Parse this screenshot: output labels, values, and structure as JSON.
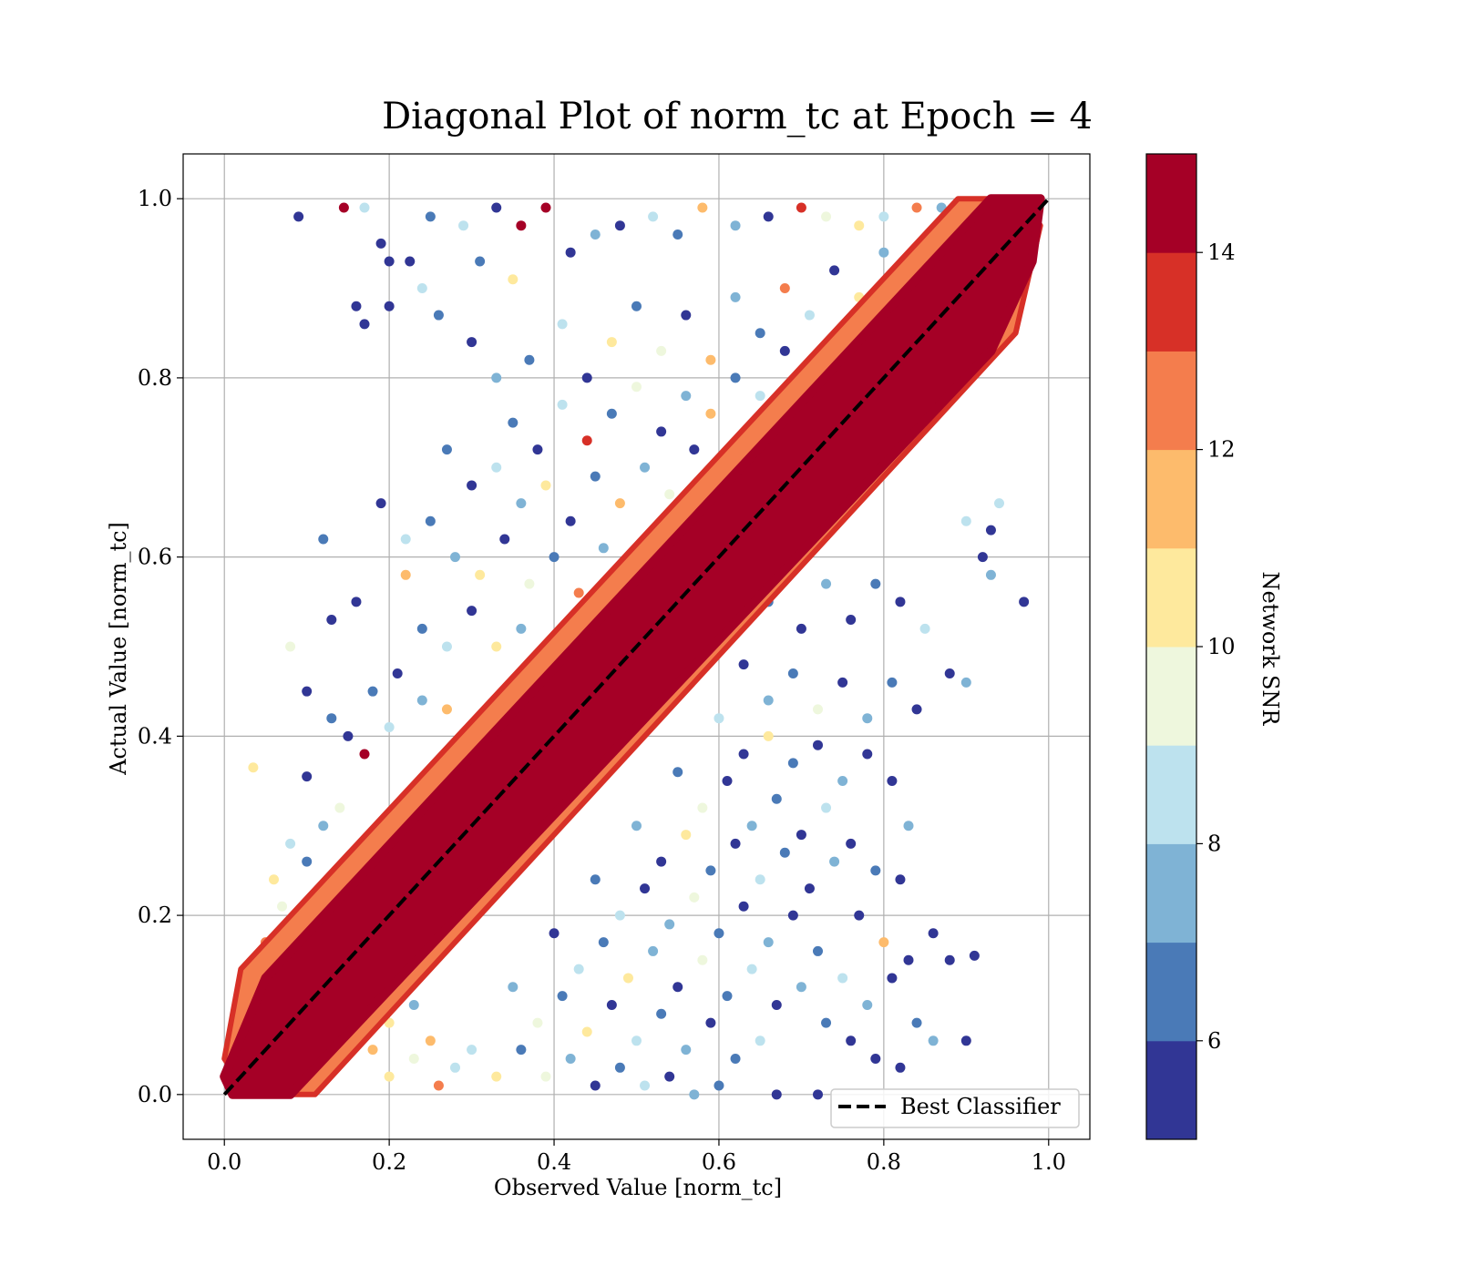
{
  "chart_data": {
    "type": "scatter",
    "title": "Diagonal Plot of norm_tc at Epoch = 4",
    "xlabel": "Observed Value [norm_tc]",
    "ylabel": "Actual Value [norm_tc]",
    "xlim": [
      -0.05,
      1.05
    ],
    "ylim": [
      -0.05,
      1.05
    ],
    "xticks": [
      0.0,
      0.2,
      0.4,
      0.6,
      0.8,
      1.0
    ],
    "xtick_labels": [
      "0.0",
      "0.2",
      "0.4",
      "0.6",
      "0.8",
      "1.0"
    ],
    "yticks": [
      0.0,
      0.2,
      0.4,
      0.6,
      0.8,
      1.0
    ],
    "ytick_labels": [
      "0.0",
      "0.2",
      "0.4",
      "0.6",
      "0.8",
      "1.0"
    ],
    "grid": true,
    "legend": {
      "position": "lower right",
      "entries": [
        "Best Classifier"
      ]
    },
    "reference_line": {
      "name": "Best Classifier",
      "style": "dashed",
      "color": "#000000",
      "x": [
        0.0,
        1.0
      ],
      "y": [
        0.0,
        1.0
      ]
    },
    "colorbar": {
      "label": "Network SNR",
      "range": [
        5,
        15
      ],
      "ticks": [
        6,
        8,
        10,
        12,
        14
      ],
      "tick_labels": [
        "6",
        "8",
        "10",
        "12",
        "14"
      ],
      "bins": [
        {
          "from": 5,
          "to": 6,
          "color": "#313695"
        },
        {
          "from": 6,
          "to": 7,
          "color": "#4a7ab7"
        },
        {
          "from": 7,
          "to": 8,
          "color": "#7fb3d5"
        },
        {
          "from": 8,
          "to": 9,
          "color": "#bde2ee"
        },
        {
          "from": 9,
          "to": 10,
          "color": "#eef7dd"
        },
        {
          "from": 10,
          "to": 11,
          "color": "#fee99d"
        },
        {
          "from": 11,
          "to": 12,
          "color": "#fdbb6c"
        },
        {
          "from": 12,
          "to": 13,
          "color": "#f47d4d"
        },
        {
          "from": 13,
          "to": 14,
          "color": "#d73027"
        },
        {
          "from": 14,
          "to": 15,
          "color": "#a50026"
        }
      ]
    },
    "band": {
      "description_color": "#a50026",
      "polygon": [
        [
          0.01,
          0.0
        ],
        [
          0.08,
          0.0
        ],
        [
          0.93,
          0.83
        ],
        [
          0.98,
          0.93
        ],
        [
          0.99,
          1.0
        ],
        [
          0.93,
          1.0
        ],
        [
          0.05,
          0.13
        ],
        [
          0.0,
          0.02
        ]
      ]
    },
    "edge_band": {
      "color": "#f47d4d",
      "polygon": [
        [
          0.03,
          0.0
        ],
        [
          0.11,
          0.0
        ],
        [
          0.96,
          0.85
        ],
        [
          0.99,
          0.97
        ],
        [
          0.97,
          1.0
        ],
        [
          0.89,
          1.0
        ],
        [
          0.02,
          0.14
        ],
        [
          0.0,
          0.04
        ]
      ]
    },
    "points": [
      [
        0.09,
        0.98,
        5
      ],
      [
        0.145,
        0.99,
        14
      ],
      [
        0.17,
        0.99,
        8
      ],
      [
        0.19,
        0.95,
        5
      ],
      [
        0.2,
        0.93,
        5
      ],
      [
        0.2,
        0.88,
        5
      ],
      [
        0.16,
        0.88,
        5
      ],
      [
        0.17,
        0.86,
        5
      ],
      [
        0.225,
        0.93,
        5
      ],
      [
        0.24,
        0.9,
        8
      ],
      [
        0.26,
        0.87,
        6
      ],
      [
        0.25,
        0.98,
        6
      ],
      [
        0.29,
        0.97,
        8
      ],
      [
        0.33,
        0.99,
        5
      ],
      [
        0.36,
        0.97,
        14
      ],
      [
        0.39,
        0.99,
        14
      ],
      [
        0.31,
        0.93,
        6
      ],
      [
        0.35,
        0.91,
        10
      ],
      [
        0.42,
        0.94,
        5
      ],
      [
        0.45,
        0.96,
        7
      ],
      [
        0.48,
        0.97,
        5
      ],
      [
        0.52,
        0.98,
        8
      ],
      [
        0.55,
        0.96,
        6
      ],
      [
        0.58,
        0.99,
        11
      ],
      [
        0.62,
        0.97,
        7
      ],
      [
        0.66,
        0.98,
        5
      ],
      [
        0.7,
        0.99,
        13
      ],
      [
        0.73,
        0.98,
        9
      ],
      [
        0.77,
        0.97,
        10
      ],
      [
        0.8,
        0.98,
        8
      ],
      [
        0.84,
        0.99,
        12
      ],
      [
        0.87,
        0.99,
        7
      ],
      [
        0.9,
        0.995,
        14
      ],
      [
        0.3,
        0.84,
        5
      ],
      [
        0.33,
        0.8,
        7
      ],
      [
        0.37,
        0.82,
        6
      ],
      [
        0.41,
        0.86,
        8
      ],
      [
        0.44,
        0.8,
        5
      ],
      [
        0.47,
        0.84,
        10
      ],
      [
        0.5,
        0.88,
        6
      ],
      [
        0.53,
        0.83,
        9
      ],
      [
        0.56,
        0.87,
        5
      ],
      [
        0.59,
        0.82,
        11
      ],
      [
        0.62,
        0.89,
        7
      ],
      [
        0.65,
        0.85,
        6
      ],
      [
        0.68,
        0.9,
        12
      ],
      [
        0.71,
        0.87,
        8
      ],
      [
        0.74,
        0.92,
        5
      ],
      [
        0.77,
        0.89,
        10
      ],
      [
        0.8,
        0.94,
        7
      ],
      [
        0.35,
        0.75,
        6
      ],
      [
        0.38,
        0.72,
        5
      ],
      [
        0.41,
        0.77,
        8
      ],
      [
        0.44,
        0.73,
        13
      ],
      [
        0.47,
        0.76,
        6
      ],
      [
        0.5,
        0.79,
        9
      ],
      [
        0.53,
        0.74,
        5
      ],
      [
        0.56,
        0.78,
        7
      ],
      [
        0.59,
        0.76,
        11
      ],
      [
        0.62,
        0.8,
        6
      ],
      [
        0.65,
        0.78,
        8
      ],
      [
        0.68,
        0.83,
        5
      ],
      [
        0.71,
        0.8,
        10
      ],
      [
        0.27,
        0.72,
        6
      ],
      [
        0.3,
        0.68,
        5
      ],
      [
        0.33,
        0.7,
        8
      ],
      [
        0.36,
        0.66,
        7
      ],
      [
        0.39,
        0.68,
        10
      ],
      [
        0.42,
        0.64,
        5
      ],
      [
        0.45,
        0.69,
        6
      ],
      [
        0.48,
        0.66,
        11
      ],
      [
        0.51,
        0.7,
        7
      ],
      [
        0.54,
        0.67,
        9
      ],
      [
        0.57,
        0.72,
        5
      ],
      [
        0.19,
        0.66,
        5
      ],
      [
        0.22,
        0.62,
        8
      ],
      [
        0.25,
        0.64,
        6
      ],
      [
        0.28,
        0.6,
        7
      ],
      [
        0.31,
        0.58,
        10
      ],
      [
        0.34,
        0.62,
        5
      ],
      [
        0.37,
        0.57,
        9
      ],
      [
        0.4,
        0.6,
        6
      ],
      [
        0.43,
        0.56,
        12
      ],
      [
        0.46,
        0.61,
        7
      ],
      [
        0.12,
        0.62,
        6
      ],
      [
        0.16,
        0.55,
        5
      ],
      [
        0.13,
        0.53,
        5
      ],
      [
        0.22,
        0.58,
        11
      ],
      [
        0.24,
        0.52,
        6
      ],
      [
        0.27,
        0.5,
        8
      ],
      [
        0.3,
        0.54,
        5
      ],
      [
        0.33,
        0.5,
        10
      ],
      [
        0.36,
        0.52,
        7
      ],
      [
        0.39,
        0.48,
        9
      ],
      [
        0.08,
        0.5,
        9
      ],
      [
        0.18,
        0.45,
        6
      ],
      [
        0.21,
        0.47,
        5
      ],
      [
        0.24,
        0.44,
        7
      ],
      [
        0.27,
        0.43,
        11
      ],
      [
        0.1,
        0.45,
        5
      ],
      [
        0.13,
        0.42,
        6
      ],
      [
        0.15,
        0.4,
        5
      ],
      [
        0.17,
        0.38,
        14
      ],
      [
        0.2,
        0.41,
        8
      ],
      [
        0.035,
        0.365,
        10
      ],
      [
        0.1,
        0.355,
        5
      ],
      [
        0.12,
        0.3,
        7
      ],
      [
        0.14,
        0.32,
        9
      ],
      [
        0.08,
        0.28,
        8
      ],
      [
        0.1,
        0.26,
        6
      ],
      [
        0.06,
        0.24,
        10
      ],
      [
        0.07,
        0.21,
        9
      ],
      [
        0.05,
        0.17,
        12
      ],
      [
        0.66,
        0.55,
        6
      ],
      [
        0.7,
        0.52,
        5
      ],
      [
        0.73,
        0.57,
        7
      ],
      [
        0.76,
        0.53,
        5
      ],
      [
        0.79,
        0.57,
        6
      ],
      [
        0.82,
        0.55,
        5
      ],
      [
        0.85,
        0.52,
        8
      ],
      [
        0.88,
        0.47,
        5
      ],
      [
        0.84,
        0.43,
        5
      ],
      [
        0.9,
        0.46,
        7
      ],
      [
        0.92,
        0.6,
        5
      ],
      [
        0.9,
        0.64,
        8
      ],
      [
        0.93,
        0.63,
        5
      ],
      [
        0.94,
        0.66,
        8
      ],
      [
        0.63,
        0.48,
        5
      ],
      [
        0.66,
        0.44,
        7
      ],
      [
        0.69,
        0.47,
        6
      ],
      [
        0.72,
        0.43,
        9
      ],
      [
        0.75,
        0.46,
        5
      ],
      [
        0.78,
        0.42,
        7
      ],
      [
        0.81,
        0.46,
        6
      ],
      [
        0.6,
        0.42,
        8
      ],
      [
        0.63,
        0.38,
        5
      ],
      [
        0.66,
        0.4,
        10
      ],
      [
        0.69,
        0.37,
        6
      ],
      [
        0.72,
        0.39,
        5
      ],
      [
        0.75,
        0.35,
        7
      ],
      [
        0.78,
        0.38,
        5
      ],
      [
        0.81,
        0.35,
        5
      ],
      [
        0.83,
        0.3,
        7
      ],
      [
        0.55,
        0.36,
        6
      ],
      [
        0.58,
        0.32,
        9
      ],
      [
        0.61,
        0.35,
        5
      ],
      [
        0.64,
        0.3,
        7
      ],
      [
        0.67,
        0.33,
        6
      ],
      [
        0.7,
        0.29,
        5
      ],
      [
        0.73,
        0.32,
        8
      ],
      [
        0.76,
        0.28,
        5
      ],
      [
        0.79,
        0.25,
        6
      ],
      [
        0.82,
        0.24,
        5
      ],
      [
        0.5,
        0.3,
        7
      ],
      [
        0.53,
        0.26,
        5
      ],
      [
        0.56,
        0.29,
        10
      ],
      [
        0.59,
        0.25,
        6
      ],
      [
        0.62,
        0.28,
        5
      ],
      [
        0.65,
        0.24,
        8
      ],
      [
        0.68,
        0.27,
        6
      ],
      [
        0.71,
        0.23,
        5
      ],
      [
        0.74,
        0.26,
        7
      ],
      [
        0.77,
        0.2,
        5
      ],
      [
        0.8,
        0.17,
        11
      ],
      [
        0.83,
        0.15,
        5
      ],
      [
        0.86,
        0.18,
        5
      ],
      [
        0.88,
        0.15,
        5
      ],
      [
        0.91,
        0.155,
        5
      ],
      [
        0.45,
        0.24,
        6
      ],
      [
        0.48,
        0.2,
        8
      ],
      [
        0.51,
        0.23,
        5
      ],
      [
        0.54,
        0.19,
        7
      ],
      [
        0.57,
        0.22,
        9
      ],
      [
        0.6,
        0.18,
        6
      ],
      [
        0.63,
        0.21,
        5
      ],
      [
        0.66,
        0.17,
        7
      ],
      [
        0.69,
        0.2,
        5
      ],
      [
        0.72,
        0.16,
        6
      ],
      [
        0.75,
        0.13,
        8
      ],
      [
        0.78,
        0.1,
        7
      ],
      [
        0.81,
        0.13,
        5
      ],
      [
        0.84,
        0.08,
        6
      ],
      [
        0.86,
        0.06,
        7
      ],
      [
        0.9,
        0.06,
        5
      ],
      [
        0.4,
        0.18,
        5
      ],
      [
        0.43,
        0.14,
        8
      ],
      [
        0.46,
        0.17,
        6
      ],
      [
        0.49,
        0.13,
        10
      ],
      [
        0.52,
        0.16,
        7
      ],
      [
        0.55,
        0.12,
        5
      ],
      [
        0.58,
        0.15,
        9
      ],
      [
        0.61,
        0.11,
        6
      ],
      [
        0.64,
        0.14,
        8
      ],
      [
        0.67,
        0.1,
        5
      ],
      [
        0.7,
        0.12,
        7
      ],
      [
        0.73,
        0.08,
        6
      ],
      [
        0.76,
        0.06,
        5
      ],
      [
        0.79,
        0.04,
        5
      ],
      [
        0.82,
        0.03,
        5
      ],
      [
        0.72,
        0.0,
        5
      ],
      [
        0.67,
        0.0,
        5
      ],
      [
        0.35,
        0.12,
        7
      ],
      [
        0.38,
        0.08,
        9
      ],
      [
        0.41,
        0.11,
        6
      ],
      [
        0.44,
        0.07,
        10
      ],
      [
        0.47,
        0.1,
        5
      ],
      [
        0.5,
        0.06,
        8
      ],
      [
        0.53,
        0.09,
        6
      ],
      [
        0.56,
        0.05,
        7
      ],
      [
        0.59,
        0.08,
        5
      ],
      [
        0.62,
        0.04,
        6
      ],
      [
        0.65,
        0.06,
        8
      ],
      [
        0.3,
        0.05,
        8
      ],
      [
        0.33,
        0.02,
        10
      ],
      [
        0.36,
        0.05,
        6
      ],
      [
        0.39,
        0.02,
        9
      ],
      [
        0.42,
        0.04,
        7
      ],
      [
        0.45,
        0.01,
        5
      ],
      [
        0.48,
        0.03,
        6
      ],
      [
        0.51,
        0.01,
        8
      ],
      [
        0.54,
        0.02,
        5
      ],
      [
        0.57,
        0.0,
        7
      ],
      [
        0.6,
        0.01,
        6
      ],
      [
        0.2,
        0.02,
        10
      ],
      [
        0.23,
        0.04,
        9
      ],
      [
        0.26,
        0.01,
        12
      ],
      [
        0.28,
        0.03,
        8
      ],
      [
        0.25,
        0.06,
        11
      ],
      [
        0.2,
        0.08,
        10
      ],
      [
        0.23,
        0.1,
        7
      ],
      [
        0.18,
        0.05,
        11
      ],
      [
        0.97,
        0.55,
        5
      ],
      [
        0.93,
        0.58,
        7
      ]
    ]
  }
}
